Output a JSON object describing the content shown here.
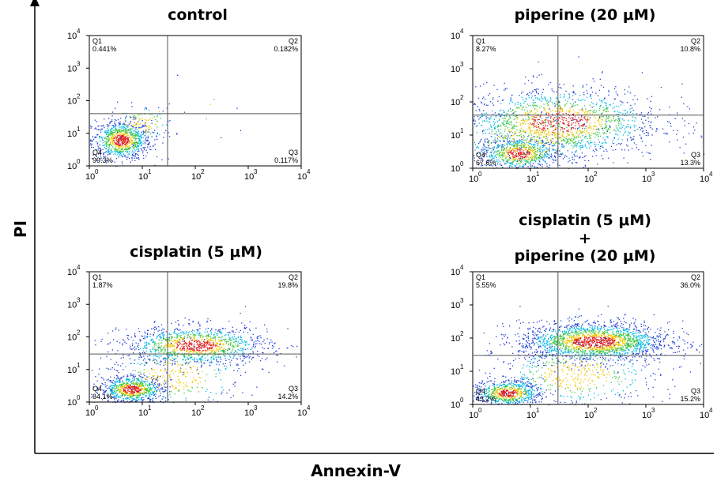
{
  "figure": {
    "ylabel": "PI",
    "xlabel": "Annexin-V"
  },
  "colors": {
    "axis": "#000000",
    "gate_line": "#555555",
    "low_density": "#1f3fd6",
    "mid_density": "#00b8e6",
    "high_density": "#3cc83c",
    "peak_density": "#f0c800",
    "max_density": "#e02020"
  },
  "chart_data": [
    {
      "type": "scatter",
      "subtype": "flow-cytometry-density-plot",
      "title": "control",
      "xscale": "log",
      "yscale": "log",
      "xlim": [
        1,
        10000
      ],
      "ylim": [
        1,
        10000
      ],
      "x_tick_labels": [
        "10^0",
        "10^1",
        "10^2",
        "10^3",
        "10^4"
      ],
      "y_tick_labels": [
        "10^0",
        "10^1",
        "10^2",
        "10^3",
        "10^4"
      ],
      "gate": {
        "x": 30,
        "y": 40
      },
      "quadrants": [
        {
          "label": "Q1",
          "percent": "0.441%"
        },
        {
          "label": "Q2",
          "percent": "0.182%"
        },
        {
          "label": "Q3",
          "percent": "0.117%"
        },
        {
          "label": "Q4",
          "percent": "99.3%"
        }
      ]
    },
    {
      "type": "scatter",
      "subtype": "flow-cytometry-density-plot",
      "title": "piperine (20 μM)",
      "xscale": "log",
      "yscale": "log",
      "xlim": [
        1,
        10000
      ],
      "ylim": [
        1,
        10000
      ],
      "x_tick_labels": [
        "10^0",
        "10^1",
        "10^2",
        "10^3",
        "10^4"
      ],
      "y_tick_labels": [
        "10^0",
        "10^1",
        "10^2",
        "10^3",
        "10^4"
      ],
      "gate": {
        "x": 30,
        "y": 40
      },
      "quadrants": [
        {
          "label": "Q1",
          "percent": "8.27%"
        },
        {
          "label": "Q2",
          "percent": "10.8%"
        },
        {
          "label": "Q3",
          "percent": "13.3%"
        },
        {
          "label": "Q4",
          "percent": "67.6%"
        }
      ]
    },
    {
      "type": "scatter",
      "subtype": "flow-cytometry-density-plot",
      "title": "cisplatin (5 μM)",
      "xscale": "log",
      "yscale": "log",
      "xlim": [
        1,
        10000
      ],
      "ylim": [
        1,
        10000
      ],
      "x_tick_labels": [
        "10^0",
        "10^1",
        "10^2",
        "10^3",
        "10^4"
      ],
      "y_tick_labels": [
        "10^0",
        "10^1",
        "10^2",
        "10^3",
        "10^4"
      ],
      "gate": {
        "x": 30,
        "y": 30
      },
      "quadrants": [
        {
          "label": "Q1",
          "percent": "1.87%"
        },
        {
          "label": "Q2",
          "percent": "19.8%"
        },
        {
          "label": "Q3",
          "percent": "14.2%"
        },
        {
          "label": "Q4",
          "percent": "64.1%"
        }
      ]
    },
    {
      "type": "scatter",
      "subtype": "flow-cytometry-density-plot",
      "title": [
        "cisplatin (5 μM)",
        "+",
        "piperine (20 μM)"
      ],
      "xscale": "log",
      "yscale": "log",
      "xlim": [
        1,
        10000
      ],
      "ylim": [
        1,
        10000
      ],
      "x_tick_labels": [
        "10^0",
        "10^1",
        "10^2",
        "10^3",
        "10^4"
      ],
      "y_tick_labels": [
        "10^0",
        "10^1",
        "10^2",
        "10^3",
        "10^4"
      ],
      "gate": {
        "x": 30,
        "y": 30
      },
      "quadrants": [
        {
          "label": "Q1",
          "percent": "5.55%"
        },
        {
          "label": "Q2",
          "percent": "36.0%"
        },
        {
          "label": "Q3",
          "percent": "15.2%"
        },
        {
          "label": "Q4",
          "percent": "43.2%"
        }
      ]
    }
  ]
}
